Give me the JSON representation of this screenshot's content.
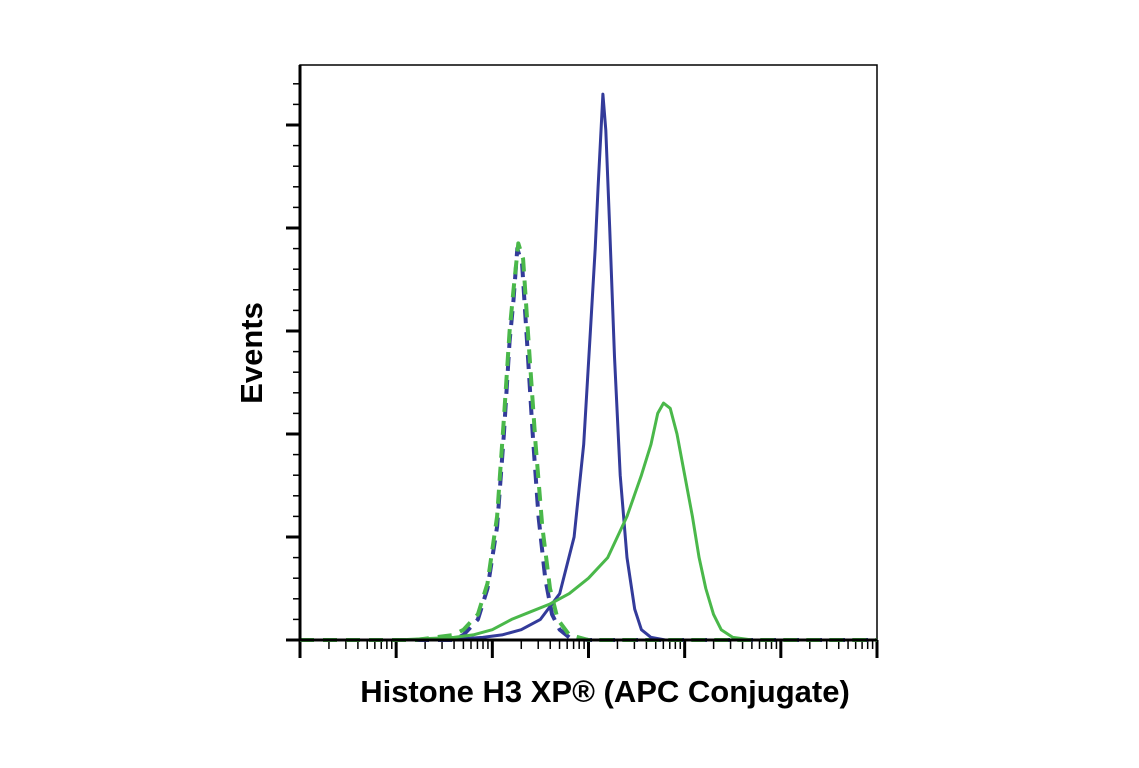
{
  "chart_data": {
    "type": "line",
    "title": "",
    "xlabel": "Histone H3 XP® (APC Conjugate)",
    "ylabel": "Events",
    "xscale": "log",
    "x_decades": 6,
    "ylim": [
      0,
      100
    ],
    "grid": false,
    "legend": "none",
    "series": [
      {
        "color": "#333b9a",
        "style": "dashed",
        "points": [
          [
            0.0,
            0
          ],
          [
            1.0,
            0
          ],
          [
            1.6,
            0
          ],
          [
            1.7,
            1
          ],
          [
            1.85,
            4
          ],
          [
            1.95,
            10
          ],
          [
            2.05,
            22
          ],
          [
            2.12,
            40
          ],
          [
            2.18,
            58
          ],
          [
            2.22,
            66
          ],
          [
            2.26,
            76
          ],
          [
            2.31,
            73
          ],
          [
            2.36,
            58
          ],
          [
            2.42,
            40
          ],
          [
            2.48,
            24
          ],
          [
            2.55,
            12
          ],
          [
            2.62,
            5
          ],
          [
            2.7,
            2
          ],
          [
            2.8,
            0.5
          ],
          [
            3.0,
            0
          ],
          [
            6.0,
            0
          ]
        ]
      },
      {
        "color": "#4ab84a",
        "style": "dashed",
        "points": [
          [
            0.0,
            0
          ],
          [
            1.2,
            0
          ],
          [
            1.4,
            0.5
          ],
          [
            1.6,
            1
          ],
          [
            1.7,
            2
          ],
          [
            1.85,
            5
          ],
          [
            1.95,
            11
          ],
          [
            2.05,
            24
          ],
          [
            2.12,
            43
          ],
          [
            2.18,
            60
          ],
          [
            2.22,
            68
          ],
          [
            2.27,
            77
          ],
          [
            2.32,
            74
          ],
          [
            2.38,
            57
          ],
          [
            2.45,
            38
          ],
          [
            2.52,
            22
          ],
          [
            2.6,
            10
          ],
          [
            2.68,
            4
          ],
          [
            2.8,
            1
          ],
          [
            3.0,
            0
          ],
          [
            6.0,
            0
          ]
        ]
      },
      {
        "color": "#333b9a",
        "style": "solid",
        "points": [
          [
            0.0,
            0
          ],
          [
            1.5,
            0
          ],
          [
            1.9,
            0.5
          ],
          [
            2.1,
            1
          ],
          [
            2.3,
            2
          ],
          [
            2.5,
            4
          ],
          [
            2.7,
            9
          ],
          [
            2.85,
            20
          ],
          [
            2.95,
            38
          ],
          [
            3.02,
            60
          ],
          [
            3.07,
            76
          ],
          [
            3.1,
            88
          ],
          [
            3.15,
            106
          ],
          [
            3.18,
            99
          ],
          [
            3.22,
            80
          ],
          [
            3.27,
            55
          ],
          [
            3.33,
            32
          ],
          [
            3.4,
            16
          ],
          [
            3.48,
            6
          ],
          [
            3.55,
            2
          ],
          [
            3.65,
            0.5
          ],
          [
            3.8,
            0
          ],
          [
            6.0,
            0
          ]
        ]
      },
      {
        "color": "#4ab84a",
        "style": "solid",
        "points": [
          [
            0.0,
            0
          ],
          [
            1.0,
            0
          ],
          [
            1.6,
            0.5
          ],
          [
            1.8,
            1
          ],
          [
            2.0,
            2
          ],
          [
            2.2,
            4
          ],
          [
            2.4,
            5.5
          ],
          [
            2.6,
            7
          ],
          [
            2.8,
            9
          ],
          [
            3.0,
            12
          ],
          [
            3.2,
            16
          ],
          [
            3.4,
            24
          ],
          [
            3.55,
            32
          ],
          [
            3.65,
            38
          ],
          [
            3.72,
            44
          ],
          [
            3.78,
            46
          ],
          [
            3.85,
            45
          ],
          [
            3.92,
            40
          ],
          [
            4.0,
            32
          ],
          [
            4.08,
            24
          ],
          [
            4.15,
            16
          ],
          [
            4.22,
            10
          ],
          [
            4.3,
            5
          ],
          [
            4.38,
            2
          ],
          [
            4.5,
            0.5
          ],
          [
            4.7,
            0
          ],
          [
            6.0,
            0
          ]
        ]
      }
    ]
  }
}
